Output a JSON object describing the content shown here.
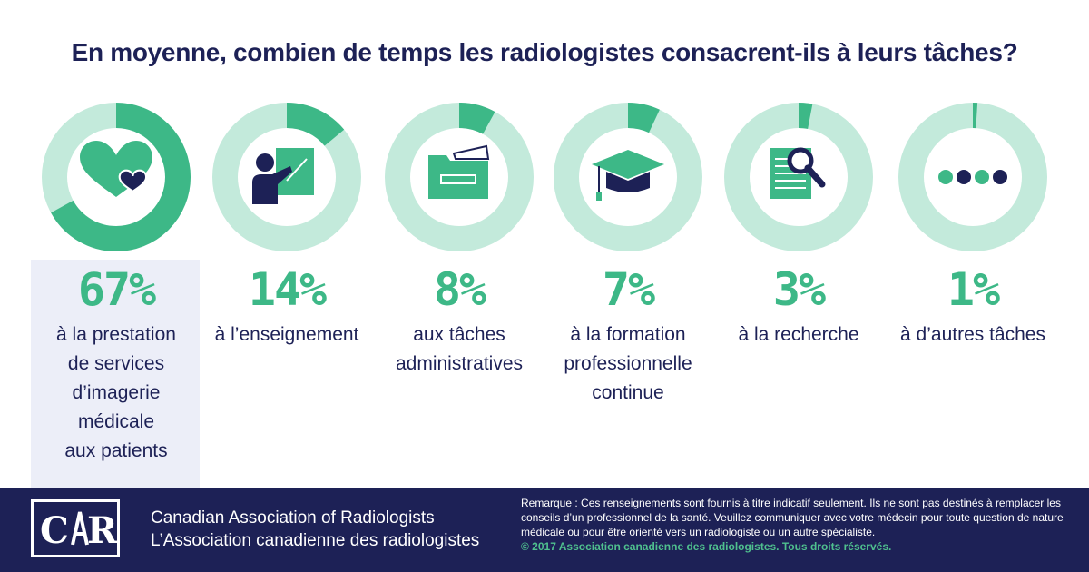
{
  "title": "En moyenne, combien de temps les radiologistes consacrent-ils à leurs tâches?",
  "chart_data": {
    "type": "pie",
    "title": "En moyenne, combien de temps les radiologistes consacrent-ils à leurs tâches?",
    "categories": [
      "à la prestation de services d’imagerie médicale aux patients",
      "à l’enseignement",
      "aux tâches administratives",
      "à la formation professionnelle continue",
      "à la recherche",
      "à d’autres tâches"
    ],
    "values": [
      67,
      14,
      8,
      7,
      3,
      1
    ],
    "pct_labels": [
      "67%",
      "14%",
      "8%",
      "7%",
      "3%",
      "1%"
    ],
    "icons": [
      "hearts-icon",
      "teacher-icon",
      "folder-icon",
      "graduation-cap-icon",
      "research-icon",
      "dots-icon"
    ],
    "highlighted_index": 0,
    "colors": {
      "filled": "#3db887",
      "track": "#c3eadb",
      "icon_green": "#3db887",
      "icon_navy": "#1d2156"
    }
  },
  "footer": {
    "logo_text": "CAR",
    "org_en": "Canadian Association of Radiologists",
    "org_fr": "L’Association canadienne des radiologistes",
    "note": "Remarque : Ces renseignements sont fournis à titre indicatif seulement. Ils ne sont pas destinés à remplacer les conseils d’un professionnel de la santé. Veuillez communiquer avec votre médecin pour toute question de nature médicale ou pour être orienté vers un radiologiste ou un autre spécialiste.",
    "copyright": "© 2017 Association canadienne des radiologistes. Tous droits réservés."
  }
}
